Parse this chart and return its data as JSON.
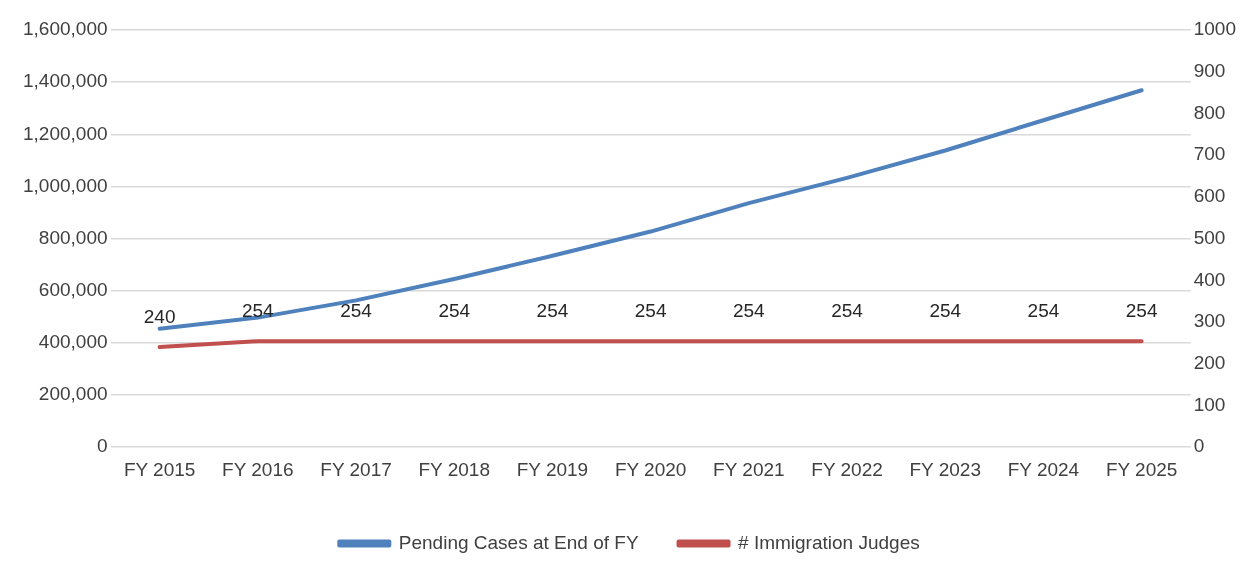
{
  "chart_data": {
    "type": "line",
    "categories": [
      "FY 2015",
      "FY 2016",
      "FY 2017",
      "FY 2018",
      "FY 2019",
      "FY 2020",
      "FY 2021",
      "FY 2022",
      "FY 2023",
      "FY 2024",
      "FY 2025"
    ],
    "series": [
      {
        "name": "Pending Cases at End of FY",
        "color": "#4f81bd",
        "values": [
          454000,
          497000,
          563000,
          645000,
          734000,
          827000,
          936000,
          1033000,
          1138000,
          1254000,
          1369000
        ]
      },
      {
        "name": "# Immigration Judges",
        "color": "#c0504d",
        "axis": "y2",
        "values": [
          240,
          254,
          254,
          254,
          254,
          254,
          254,
          254,
          254,
          254,
          254
        ],
        "value_labels": [
          "240",
          "254",
          "254",
          "254",
          "254",
          "254",
          "254",
          "254",
          "254",
          "254",
          "254"
        ]
      }
    ],
    "ylim": [
      0,
      1600000
    ],
    "yticks": [
      {
        "value": 0,
        "label": "0"
      },
      {
        "value": 200000,
        "label": "200,000"
      },
      {
        "value": 400000,
        "label": "400,000"
      },
      {
        "value": 600000,
        "label": "600,000"
      },
      {
        "value": 800000,
        "label": "800,000"
      },
      {
        "value": 1000000,
        "label": "1,000,000"
      },
      {
        "value": 1200000,
        "label": "1,200,000"
      },
      {
        "value": 1400000,
        "label": "1,400,000"
      },
      {
        "value": 1600000,
        "label": "1,600,000"
      }
    ],
    "y2lim": [
      0,
      1000
    ],
    "y2ticks": [
      0,
      100,
      200,
      300,
      400,
      500,
      600,
      700,
      800,
      900,
      1000
    ],
    "grid": "y",
    "legend": "bottom",
    "marker": "none",
    "line_style": "solid"
  }
}
